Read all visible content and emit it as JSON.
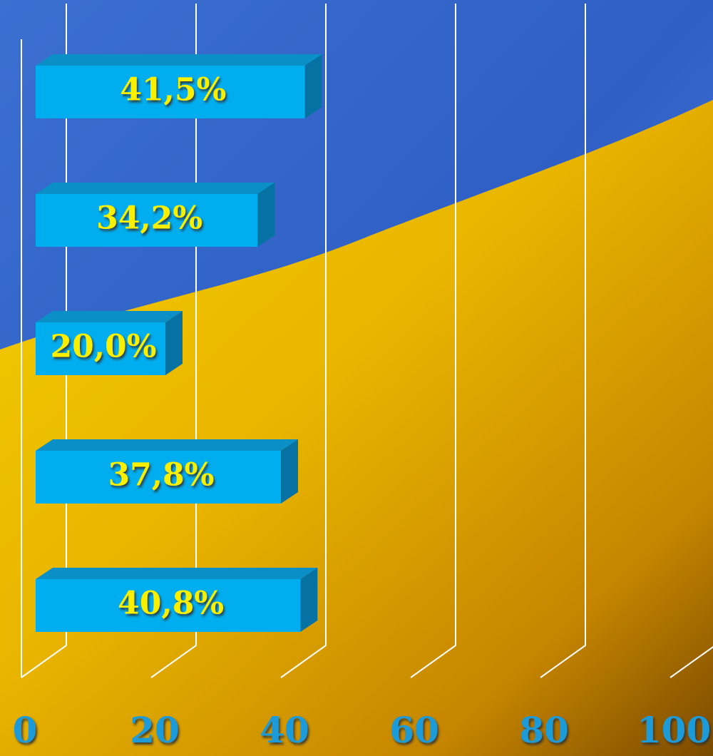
{
  "chart_data": {
    "type": "bar",
    "orientation": "horizontal",
    "values": [
      41.5,
      34.2,
      20.0,
      37.8,
      40.8
    ],
    "value_labels": [
      "41,5%",
      "34,2%",
      "20,0%",
      "37,8%",
      "40,8%"
    ],
    "color": "#00aeef",
    "xlim": [
      0,
      100
    ],
    "xticks": [
      0,
      20,
      40,
      60,
      80,
      100
    ],
    "grid": true
  }
}
